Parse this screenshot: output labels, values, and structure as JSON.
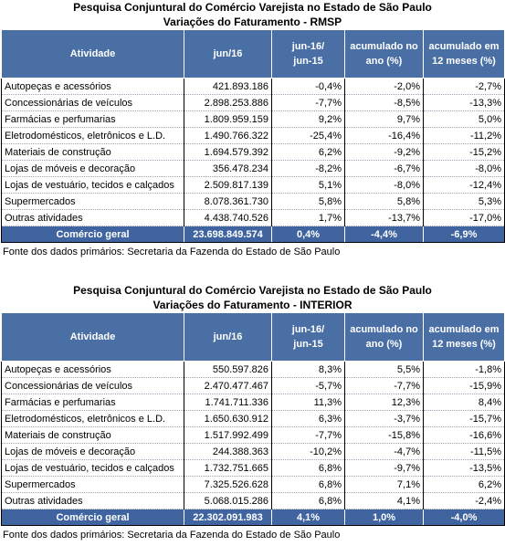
{
  "tables": [
    {
      "title1": "Pesquisa Conjuntural do Comércio Varejista no Estado de São Paulo",
      "title2": "Variações do Faturamento - RMSP",
      "headers": [
        "Atividade",
        "jun/16",
        "jun-16/\njun-15",
        "acumulado no\nano (%)",
        "acumulado em\n12 meses (%)"
      ],
      "rows": [
        [
          "Autopeças e acessórios",
          "421.893.186",
          "-0,4%",
          "-2,0%",
          "-2,7%"
        ],
        [
          "Concessionárias de veículos",
          "2.898.253.886",
          "-7,7%",
          "-8,5%",
          "-13,3%"
        ],
        [
          "Farmácias e perfumarias",
          "1.809.959.159",
          "9,2%",
          "9,7%",
          "5,0%"
        ],
        [
          "Eletrodomésticos, eletrônicos e L.D.",
          "1.490.766.322",
          "-25,4%",
          "-16,4%",
          "-11,2%"
        ],
        [
          "Materiais de construção",
          "1.694.579.392",
          "6,2%",
          "-9,2%",
          "-15,2%"
        ],
        [
          "Lojas de móveis e decoração",
          "356.478.234",
          "-8,2%",
          "-6,7%",
          "-8,0%"
        ],
        [
          "Lojas de vestuário, tecidos e calçados",
          "2.509.817.139",
          "5,1%",
          "-8,0%",
          "-12,4%"
        ],
        [
          "Supermercados",
          "8.078.361.730",
          "5,8%",
          "5,8%",
          "5,3%"
        ],
        [
          "Outras atividades",
          "4.438.740.526",
          "1,7%",
          "-13,7%",
          "-17,0%"
        ]
      ],
      "total": [
        "Comércio geral",
        "23.698.849.574",
        "0,4%",
        "-4,4%",
        "-6,9%"
      ],
      "note": "Fonte dos dados primários: Secretaria da Fazenda do Estado de São Paulo"
    },
    {
      "title1": "Pesquisa Conjuntural do Comércio Varejista no Estado de São Paulo",
      "title2": "Variações do Faturamento - INTERIOR",
      "headers": [
        "Atividade",
        "jun/16",
        "jun-16/\njun-15",
        "acumulado no\nano (%)",
        "acumulado em\n12 meses (%)"
      ],
      "rows": [
        [
          "Autopeças e acessórios",
          "550.597.826",
          "8,3%",
          "5,5%",
          "-1,8%"
        ],
        [
          "Concessionárias de veículos",
          "2.470.477.467",
          "-5,7%",
          "-7,7%",
          "-15,9%"
        ],
        [
          "Farmácias e perfumarias",
          "1.741.711.336",
          "11,3%",
          "12,3%",
          "8,4%"
        ],
        [
          "Eletrodomésticos, eletrônicos e L.D.",
          "1.650.630.912",
          "6,3%",
          "-3,7%",
          "-15,7%"
        ],
        [
          "Materiais de construção",
          "1.517.992.499",
          "-7,7%",
          "-15,8%",
          "-16,6%"
        ],
        [
          "Lojas de móveis e decoração",
          "244.388.363",
          "-10,2%",
          "-4,7%",
          "-11,5%"
        ],
        [
          "Lojas de vestuário, tecidos e calçados",
          "1.732.751.665",
          "6,8%",
          "-9,7%",
          "-13,5%"
        ],
        [
          "Supermercados",
          "7.325.526.628",
          "6,8%",
          "7,1%",
          "6,2%"
        ],
        [
          "Outras atividades",
          "5.068.015.286",
          "6,8%",
          "4,1%",
          "-2,4%"
        ]
      ],
      "total": [
        "Comércio geral",
        "22.302.091.983",
        "4,1%",
        "1,0%",
        "-4,0%"
      ],
      "note": "Fonte dos dados primários: Secretaria da Fazenda do Estado de São Paulo"
    }
  ]
}
